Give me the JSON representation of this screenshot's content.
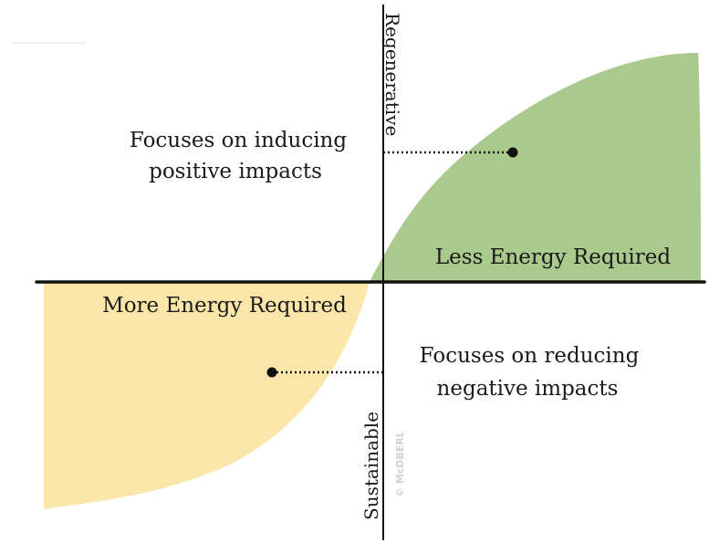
{
  "axis": {
    "top_label": "Regenerative",
    "bottom_label": "Sustainable"
  },
  "quadrants": {
    "upper_left_text": [
      "Focuses on inducing",
      "positive impacts"
    ],
    "lower_right_text": [
      "Focuses on reducing",
      "negative impacts"
    ]
  },
  "regions": {
    "green_label": "Less Energy Required",
    "yellow_label": "More Energy Required"
  },
  "watermark": "© McDBERL",
  "colors": {
    "green": "#aac98d",
    "yellow": "#f9e6a8",
    "line": "#111111"
  }
}
